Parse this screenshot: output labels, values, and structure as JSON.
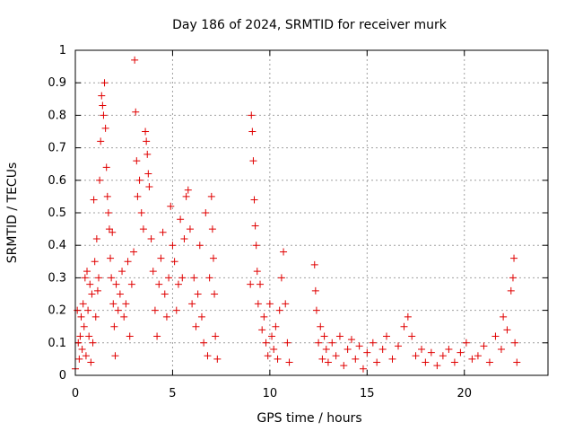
{
  "chart_data": {
    "type": "scatter",
    "title": "Day 186 of 2024, SRMTID for receiver murk",
    "xlabel": "GPS time / hours",
    "ylabel": "SRMTID / TECUs",
    "xlim": [
      0,
      24.3
    ],
    "ylim": [
      0,
      1
    ],
    "xticks": [
      0,
      5,
      10,
      15,
      20
    ],
    "xtick_labels": [
      "0",
      "5",
      "10",
      "15",
      "20"
    ],
    "yticks": [
      0,
      0.1,
      0.2,
      0.3,
      0.4,
      0.5,
      0.6,
      0.7,
      0.8,
      0.9,
      1
    ],
    "ytick_labels": [
      "0",
      "0.1",
      "0.2",
      "0.3",
      "0.4",
      "0.5",
      "0.6",
      "0.7",
      "0.8",
      "0.9",
      "1"
    ],
    "grid": true,
    "marker": "plus",
    "marker_color": "#e00000",
    "series": [
      {
        "name": "SRMTID",
        "points": [
          [
            0.0,
            0.02
          ],
          [
            0.1,
            0.2
          ],
          [
            0.15,
            0.1
          ],
          [
            0.2,
            0.05
          ],
          [
            0.25,
            0.12
          ],
          [
            0.3,
            0.18
          ],
          [
            0.35,
            0.08
          ],
          [
            0.4,
            0.22
          ],
          [
            0.45,
            0.15
          ],
          [
            0.5,
            0.3
          ],
          [
            0.55,
            0.06
          ],
          [
            0.6,
            0.32
          ],
          [
            0.65,
            0.2
          ],
          [
            0.7,
            0.12
          ],
          [
            0.75,
            0.28
          ],
          [
            0.8,
            0.04
          ],
          [
            0.85,
            0.25
          ],
          [
            0.9,
            0.1
          ],
          [
            0.95,
            0.54
          ],
          [
            1.0,
            0.35
          ],
          [
            1.05,
            0.18
          ],
          [
            1.1,
            0.42
          ],
          [
            1.15,
            0.26
          ],
          [
            1.2,
            0.3
          ],
          [
            1.25,
            0.6
          ],
          [
            1.3,
            0.72
          ],
          [
            1.35,
            0.86
          ],
          [
            1.4,
            0.83
          ],
          [
            1.45,
            0.8
          ],
          [
            1.5,
            0.9
          ],
          [
            1.55,
            0.76
          ],
          [
            1.6,
            0.64
          ],
          [
            1.65,
            0.55
          ],
          [
            1.7,
            0.5
          ],
          [
            1.75,
            0.45
          ],
          [
            1.8,
            0.36
          ],
          [
            1.85,
            0.3
          ],
          [
            1.9,
            0.44
          ],
          [
            1.95,
            0.22
          ],
          [
            2.0,
            0.15
          ],
          [
            2.05,
            0.06
          ],
          [
            2.1,
            0.28
          ],
          [
            2.2,
            0.2
          ],
          [
            2.3,
            0.25
          ],
          [
            2.4,
            0.32
          ],
          [
            2.5,
            0.18
          ],
          [
            2.6,
            0.22
          ],
          [
            2.7,
            0.35
          ],
          [
            2.8,
            0.12
          ],
          [
            2.9,
            0.28
          ],
          [
            3.0,
            0.38
          ],
          [
            3.05,
            0.97
          ],
          [
            3.1,
            0.81
          ],
          [
            3.15,
            0.66
          ],
          [
            3.2,
            0.55
          ],
          [
            3.3,
            0.6
          ],
          [
            3.4,
            0.5
          ],
          [
            3.5,
            0.45
          ],
          [
            3.6,
            0.75
          ],
          [
            3.65,
            0.72
          ],
          [
            3.7,
            0.68
          ],
          [
            3.75,
            0.62
          ],
          [
            3.8,
            0.58
          ],
          [
            3.9,
            0.42
          ],
          [
            4.0,
            0.32
          ],
          [
            4.1,
            0.2
          ],
          [
            4.2,
            0.12
          ],
          [
            4.3,
            0.28
          ],
          [
            4.4,
            0.36
          ],
          [
            4.5,
            0.44
          ],
          [
            4.6,
            0.25
          ],
          [
            4.7,
            0.18
          ],
          [
            4.8,
            0.3
          ],
          [
            4.9,
            0.52
          ],
          [
            5.0,
            0.4
          ],
          [
            5.1,
            0.35
          ],
          [
            5.2,
            0.2
          ],
          [
            5.3,
            0.28
          ],
          [
            5.4,
            0.48
          ],
          [
            5.5,
            0.3
          ],
          [
            5.6,
            0.42
          ],
          [
            5.7,
            0.55
          ],
          [
            5.8,
            0.57
          ],
          [
            5.9,
            0.45
          ],
          [
            6.0,
            0.22
          ],
          [
            6.1,
            0.3
          ],
          [
            6.2,
            0.15
          ],
          [
            6.3,
            0.25
          ],
          [
            6.4,
            0.4
          ],
          [
            6.5,
            0.18
          ],
          [
            6.6,
            0.1
          ],
          [
            6.7,
            0.5
          ],
          [
            6.8,
            0.06
          ],
          [
            6.9,
            0.3
          ],
          [
            7.0,
            0.55
          ],
          [
            7.05,
            0.45
          ],
          [
            7.1,
            0.36
          ],
          [
            7.15,
            0.25
          ],
          [
            7.2,
            0.12
          ],
          [
            7.3,
            0.05
          ],
          [
            9.0,
            0.28
          ],
          [
            9.05,
            0.8
          ],
          [
            9.1,
            0.75
          ],
          [
            9.15,
            0.66
          ],
          [
            9.2,
            0.54
          ],
          [
            9.25,
            0.46
          ],
          [
            9.3,
            0.4
          ],
          [
            9.35,
            0.32
          ],
          [
            9.4,
            0.22
          ],
          [
            9.5,
            0.28
          ],
          [
            9.6,
            0.14
          ],
          [
            9.7,
            0.18
          ],
          [
            9.8,
            0.1
          ],
          [
            9.9,
            0.06
          ],
          [
            10.0,
            0.22
          ],
          [
            10.1,
            0.12
          ],
          [
            10.2,
            0.08
          ],
          [
            10.3,
            0.15
          ],
          [
            10.4,
            0.05
          ],
          [
            10.5,
            0.2
          ],
          [
            10.6,
            0.3
          ],
          [
            10.7,
            0.38
          ],
          [
            10.8,
            0.22
          ],
          [
            10.9,
            0.1
          ],
          [
            11.0,
            0.04
          ],
          [
            12.3,
            0.34
          ],
          [
            12.35,
            0.26
          ],
          [
            12.4,
            0.2
          ],
          [
            12.5,
            0.1
          ],
          [
            12.6,
            0.15
          ],
          [
            12.7,
            0.05
          ],
          [
            12.8,
            0.12
          ],
          [
            12.9,
            0.08
          ],
          [
            13.0,
            0.04
          ],
          [
            13.2,
            0.1
          ],
          [
            13.4,
            0.06
          ],
          [
            13.6,
            0.12
          ],
          [
            13.8,
            0.03
          ],
          [
            14.0,
            0.08
          ],
          [
            14.2,
            0.11
          ],
          [
            14.4,
            0.05
          ],
          [
            14.6,
            0.09
          ],
          [
            14.8,
            0.02
          ],
          [
            15.0,
            0.07
          ],
          [
            15.3,
            0.1
          ],
          [
            15.5,
            0.04
          ],
          [
            15.8,
            0.08
          ],
          [
            16.0,
            0.12
          ],
          [
            16.3,
            0.05
          ],
          [
            16.6,
            0.09
          ],
          [
            16.9,
            0.15
          ],
          [
            17.1,
            0.18
          ],
          [
            17.3,
            0.12
          ],
          [
            17.5,
            0.06
          ],
          [
            17.8,
            0.08
          ],
          [
            18.0,
            0.04
          ],
          [
            18.3,
            0.07
          ],
          [
            18.6,
            0.03
          ],
          [
            18.9,
            0.06
          ],
          [
            19.2,
            0.08
          ],
          [
            19.5,
            0.04
          ],
          [
            19.8,
            0.07
          ],
          [
            20.1,
            0.1
          ],
          [
            20.4,
            0.05
          ],
          [
            20.7,
            0.06
          ],
          [
            21.0,
            0.09
          ],
          [
            21.3,
            0.04
          ],
          [
            21.6,
            0.12
          ],
          [
            21.9,
            0.08
          ],
          [
            22.0,
            0.18
          ],
          [
            22.2,
            0.14
          ],
          [
            22.4,
            0.26
          ],
          [
            22.5,
            0.3
          ],
          [
            22.55,
            0.36
          ],
          [
            22.6,
            0.1
          ],
          [
            22.7,
            0.04
          ]
        ]
      }
    ]
  }
}
